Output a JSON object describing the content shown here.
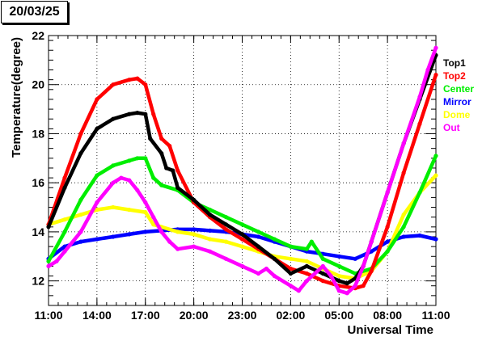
{
  "chart_data": {
    "type": "scatter",
    "title": "20/03/25",
    "xlabel": "Universal Time",
    "ylabel": "Temperature(degree)",
    "xlim": [
      11,
      35
    ],
    "ylim": [
      11,
      22
    ],
    "grid": true,
    "legend_position": "right",
    "x_ticks": [
      {
        "value": 11,
        "label": "11:00"
      },
      {
        "value": 14,
        "label": "14:00"
      },
      {
        "value": 17,
        "label": "17:00"
      },
      {
        "value": 20,
        "label": "20:00"
      },
      {
        "value": 23,
        "label": "23:00"
      },
      {
        "value": 26,
        "label": "02:00"
      },
      {
        "value": 29,
        "label": "05:00"
      },
      {
        "value": 32,
        "label": "08:00"
      },
      {
        "value": 35,
        "label": "11:00"
      }
    ],
    "y_ticks": [
      {
        "value": 12,
        "label": "12"
      },
      {
        "value": 14,
        "label": "14"
      },
      {
        "value": 16,
        "label": "16"
      },
      {
        "value": 18,
        "label": "18"
      },
      {
        "value": 20,
        "label": "20"
      },
      {
        "value": 22,
        "label": "22"
      }
    ],
    "series": [
      {
        "name": "Top1",
        "color": "#000000",
        "x": [
          11,
          12,
          13,
          14,
          15,
          16,
          16.5,
          17,
          17.3,
          18,
          18.3,
          18.7,
          19,
          20,
          21,
          22,
          23,
          24,
          25,
          26,
          27,
          28,
          29,
          29.5,
          30,
          30.5,
          31,
          32,
          33,
          34,
          35
        ],
        "y": [
          14.2,
          15.8,
          17.2,
          18.2,
          18.6,
          18.8,
          18.85,
          18.8,
          17.8,
          17.2,
          16.6,
          16.5,
          15.8,
          15.3,
          14.7,
          14.3,
          13.9,
          13.4,
          12.9,
          12.3,
          12.6,
          12.3,
          12.0,
          11.9,
          12.1,
          12.6,
          13.6,
          15.6,
          17.6,
          19.4,
          21.2
        ]
      },
      {
        "name": "Top2",
        "color": "#ff0000",
        "x": [
          11,
          12,
          13,
          14,
          15,
          16,
          16.5,
          17,
          17.5,
          18,
          18.5,
          19,
          20,
          21,
          22,
          23,
          24,
          25,
          26,
          27,
          28,
          29,
          30,
          30.5,
          31,
          32,
          33,
          34,
          35
        ],
        "y": [
          14.3,
          16.2,
          18.0,
          19.4,
          20.0,
          20.2,
          20.25,
          20.0,
          18.8,
          17.8,
          17.5,
          16.5,
          15.2,
          14.6,
          14.1,
          13.7,
          13.3,
          12.9,
          12.5,
          12.3,
          12.0,
          11.8,
          11.7,
          11.8,
          12.4,
          14.2,
          16.4,
          18.4,
          20.4
        ]
      },
      {
        "name": "Center",
        "color": "#00ee00",
        "x": [
          11,
          12,
          13,
          14,
          15,
          16,
          16.5,
          17,
          17.5,
          18,
          19,
          20,
          21,
          22,
          23,
          24,
          25,
          26,
          27,
          27.3,
          28,
          29,
          30,
          31,
          32,
          33,
          34,
          35
        ],
        "y": [
          12.8,
          14.0,
          15.3,
          16.3,
          16.7,
          16.9,
          17.0,
          17.0,
          16.2,
          15.9,
          15.7,
          15.2,
          14.9,
          14.6,
          14.3,
          14.0,
          13.7,
          13.4,
          13.3,
          13.6,
          12.9,
          12.6,
          12.3,
          12.5,
          13.2,
          14.2,
          15.6,
          17.1
        ]
      },
      {
        "name": "Mirror",
        "color": "#0000ff",
        "x": [
          11,
          12,
          13,
          14,
          15,
          16,
          17,
          18,
          19,
          20,
          21,
          22,
          23,
          24,
          25,
          26,
          27,
          28,
          29,
          30,
          31,
          32,
          33,
          34,
          35
        ],
        "y": [
          12.9,
          13.4,
          13.6,
          13.7,
          13.8,
          13.9,
          14.0,
          14.05,
          14.1,
          14.1,
          14.05,
          14.0,
          13.9,
          13.8,
          13.6,
          13.4,
          13.2,
          13.1,
          13.0,
          12.9,
          13.2,
          13.6,
          13.8,
          13.85,
          13.7
        ]
      },
      {
        "name": "Dome",
        "color": "#ffff00",
        "x": [
          11,
          12,
          13,
          14,
          15,
          16,
          17,
          17.5,
          18,
          19,
          20,
          21,
          22,
          23,
          24,
          25,
          26,
          27,
          28,
          29,
          30,
          31,
          32,
          33,
          34,
          35
        ],
        "y": [
          14.3,
          14.5,
          14.7,
          14.9,
          15.0,
          14.9,
          14.8,
          14.3,
          14.2,
          14.0,
          13.9,
          13.7,
          13.6,
          13.4,
          13.2,
          13.0,
          12.9,
          12.8,
          12.5,
          12.2,
          12.1,
          12.4,
          13.2,
          14.7,
          15.6,
          16.3
        ]
      },
      {
        "name": "Out",
        "color": "#ff00ff",
        "x": [
          11,
          11.5,
          12,
          13,
          14,
          15,
          15.5,
          16,
          16.5,
          17,
          17.5,
          18,
          18.5,
          19,
          20,
          21,
          22,
          23,
          24,
          24.5,
          25,
          26,
          26.5,
          27,
          28,
          28.5,
          29,
          29.5,
          30,
          30.5,
          31,
          32,
          33,
          34,
          34.5,
          35
        ],
        "y": [
          12.6,
          12.8,
          13.2,
          14.0,
          15.2,
          16.0,
          16.2,
          16.1,
          15.7,
          15.2,
          14.6,
          14.0,
          13.6,
          13.3,
          13.4,
          13.2,
          12.9,
          12.6,
          12.3,
          12.5,
          12.2,
          11.8,
          11.6,
          12.0,
          12.6,
          12.2,
          11.6,
          11.5,
          11.8,
          12.6,
          13.6,
          15.6,
          17.6,
          19.5,
          20.6,
          21.5
        ]
      }
    ]
  }
}
